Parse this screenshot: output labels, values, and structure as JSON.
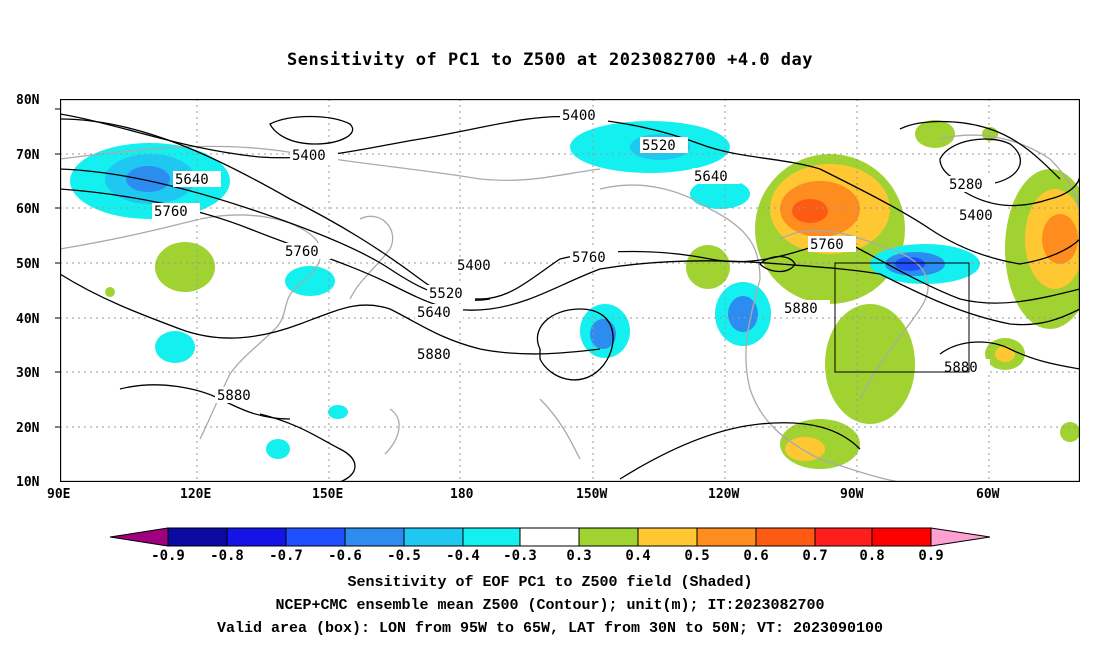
{
  "title": "Sensitivity of PC1 to Z500 at 2023082700 +4.0 day",
  "axes": {
    "lat_labels": [
      "80N",
      "70N",
      "60N",
      "50N",
      "40N",
      "30N",
      "20N",
      "10N"
    ],
    "lon_labels": [
      "90E",
      "120E",
      "150E",
      "180",
      "150W",
      "120W",
      "90W",
      "60W"
    ]
  },
  "contour_labels": [
    "5400",
    "5520",
    "5640",
    "5760",
    "5880",
    "5280"
  ],
  "box": {
    "lon": "95W to 65W",
    "lat": "30N to 50N"
  },
  "colorbar": {
    "labels": [
      "-0.9",
      "-0.8",
      "-0.7",
      "-0.6",
      "-0.5",
      "-0.4",
      "-0.3",
      "0.3",
      "0.4",
      "0.5",
      "0.6",
      "0.7",
      "0.8",
      "0.9"
    ],
    "colors": [
      "#a0007f",
      "#0a0aa0",
      "#1414e6",
      "#1e50ff",
      "#2d8cf0",
      "#1ec8f0",
      "#14f0f0",
      "#ffffff",
      "#a0d232",
      "#ffc832",
      "#ff8c1e",
      "#ff5a14",
      "#ff1e1e",
      "#ff0000",
      "#ffa0d2"
    ]
  },
  "captions": [
    "Sensitivity of EOF PC1 to Z500 field (Shaded)",
    "NCEP+CMC ensemble mean Z500 (Contour); unit(m); IT:2023082700",
    "Valid area (box): LON from 95W to 65W, LAT from 30N to 50N; VT: 2023090100"
  ]
}
